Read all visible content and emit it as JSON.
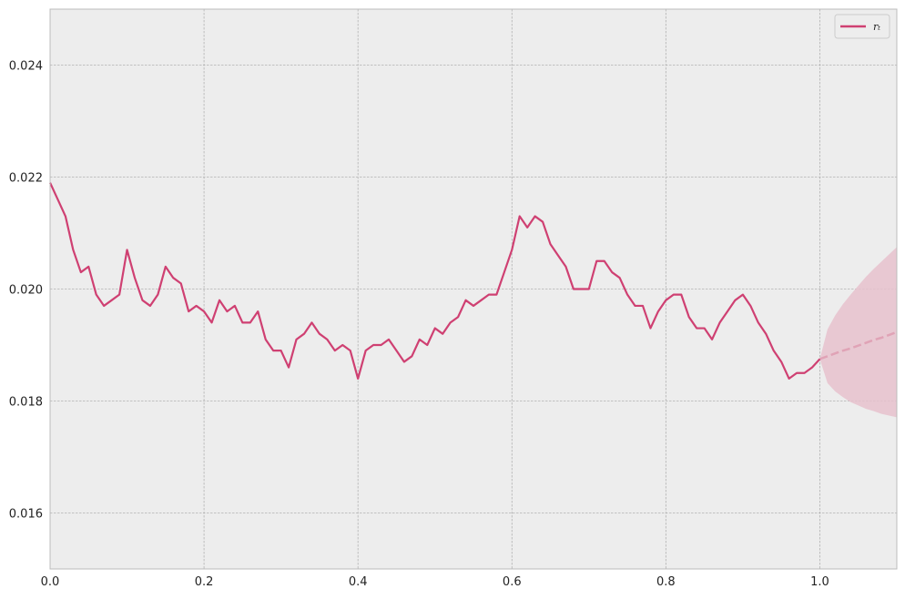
{
  "chart_data": {
    "type": "line",
    "xlim": [
      0,
      1.1
    ],
    "ylim": [
      0.015,
      0.025
    ],
    "xticks": [
      {
        "value": 0,
        "label": "0.0"
      },
      0.2,
      0.4,
      0.6,
      0.8,
      {
        "value": 1,
        "label": "1.0"
      }
    ],
    "yticks": [
      0.016,
      0.018,
      {
        "value": 0.02,
        "label": "0.020"
      },
      0.022,
      0.024
    ],
    "grid": true,
    "legend": "upper right",
    "x": [
      0,
      0.01,
      0.02,
      0.03,
      0.04,
      0.05,
      0.06,
      0.07,
      0.08,
      0.09,
      0.1,
      0.11,
      0.12,
      0.13,
      0.14,
      0.15,
      0.16,
      0.17,
      0.18,
      0.19,
      0.2,
      0.21,
      0.22,
      0.23,
      0.24,
      0.25,
      0.26,
      0.27,
      0.28,
      0.29,
      0.3,
      0.31,
      0.32,
      0.33,
      0.34,
      0.35,
      0.36,
      0.37,
      0.38,
      0.39,
      0.4,
      0.41,
      0.42,
      0.43,
      0.44,
      0.45,
      0.46,
      0.47,
      0.48,
      0.49,
      0.5,
      0.51,
      0.52,
      0.53,
      0.54,
      0.55,
      0.56,
      0.57,
      0.58,
      0.59,
      0.6,
      0.61,
      0.62,
      0.63,
      0.64,
      0.65,
      0.66,
      0.67,
      0.68,
      0.69,
      0.7,
      0.71,
      0.72,
      0.73,
      0.74,
      0.75,
      0.76,
      0.77,
      0.78,
      0.79,
      0.8,
      0.81,
      0.82,
      0.83,
      0.84,
      0.85,
      0.86,
      0.87,
      0.88,
      0.89,
      0.9,
      0.91,
      0.92,
      0.93,
      0.94,
      0.95,
      0.96,
      0.97,
      0.98,
      0.99,
      1.0
    ],
    "series": [
      {
        "name": "rₜ",
        "color": "#cf4072",
        "values": [
          0.0219,
          0.0216,
          0.0213,
          0.0207,
          0.0203,
          0.0204,
          0.0199,
          0.0197,
          0.0198,
          0.0199,
          0.0207,
          0.0202,
          0.0198,
          0.0197,
          0.0199,
          0.0204,
          0.0202,
          0.0201,
          0.0196,
          0.0197,
          0.0196,
          0.0194,
          0.0198,
          0.0196,
          0.0197,
          0.0194,
          0.0194,
          0.0196,
          0.0191,
          0.0189,
          0.0189,
          0.0186,
          0.0191,
          0.0192,
          0.0194,
          0.0192,
          0.0191,
          0.0189,
          0.019,
          0.0189,
          0.0184,
          0.0189,
          0.019,
          0.019,
          0.0191,
          0.0189,
          0.0187,
          0.0188,
          0.0191,
          0.019,
          0.0193,
          0.0192,
          0.0194,
          0.0195,
          0.0198,
          0.0197,
          0.0198,
          0.0199,
          0.0199,
          0.0203,
          0.0207,
          0.0213,
          0.0211,
          0.0213,
          0.0212,
          0.0208,
          0.0206,
          0.0204,
          0.02,
          0.02,
          0.02,
          0.0205,
          0.0205,
          0.0203,
          0.0202,
          0.0199,
          0.0197,
          0.0197,
          0.0193,
          0.0196,
          0.0198,
          0.0199,
          0.0199,
          0.0195,
          0.0193,
          0.0193,
          0.0191,
          0.0194,
          0.0196,
          0.0198,
          0.0199,
          0.0197,
          0.0194,
          0.0192,
          0.0189,
          0.0187,
          0.0184,
          0.0185,
          0.0185,
          0.0186,
          0.01875
        ]
      }
    ],
    "forecast": {
      "color": "#e0a3b6",
      "band_color": "#e6c1cd",
      "x": [
        1.0,
        1.01,
        1.02,
        1.03,
        1.04,
        1.05,
        1.06,
        1.07,
        1.08,
        1.09,
        1.1
      ],
      "mean": [
        0.01875,
        0.0188,
        0.01885,
        0.0189,
        0.01894,
        0.01899,
        0.01904,
        0.01909,
        0.01913,
        0.01918,
        0.01923
      ],
      "upper": [
        0.01875,
        0.01928,
        0.01953,
        0.01973,
        0.0199,
        0.02006,
        0.02022,
        0.02036,
        0.02049,
        0.02062,
        0.02075
      ],
      "lower": [
        0.01875,
        0.01832,
        0.01817,
        0.01807,
        0.01798,
        0.01792,
        0.01786,
        0.01782,
        0.01777,
        0.01774,
        0.01771
      ]
    }
  }
}
